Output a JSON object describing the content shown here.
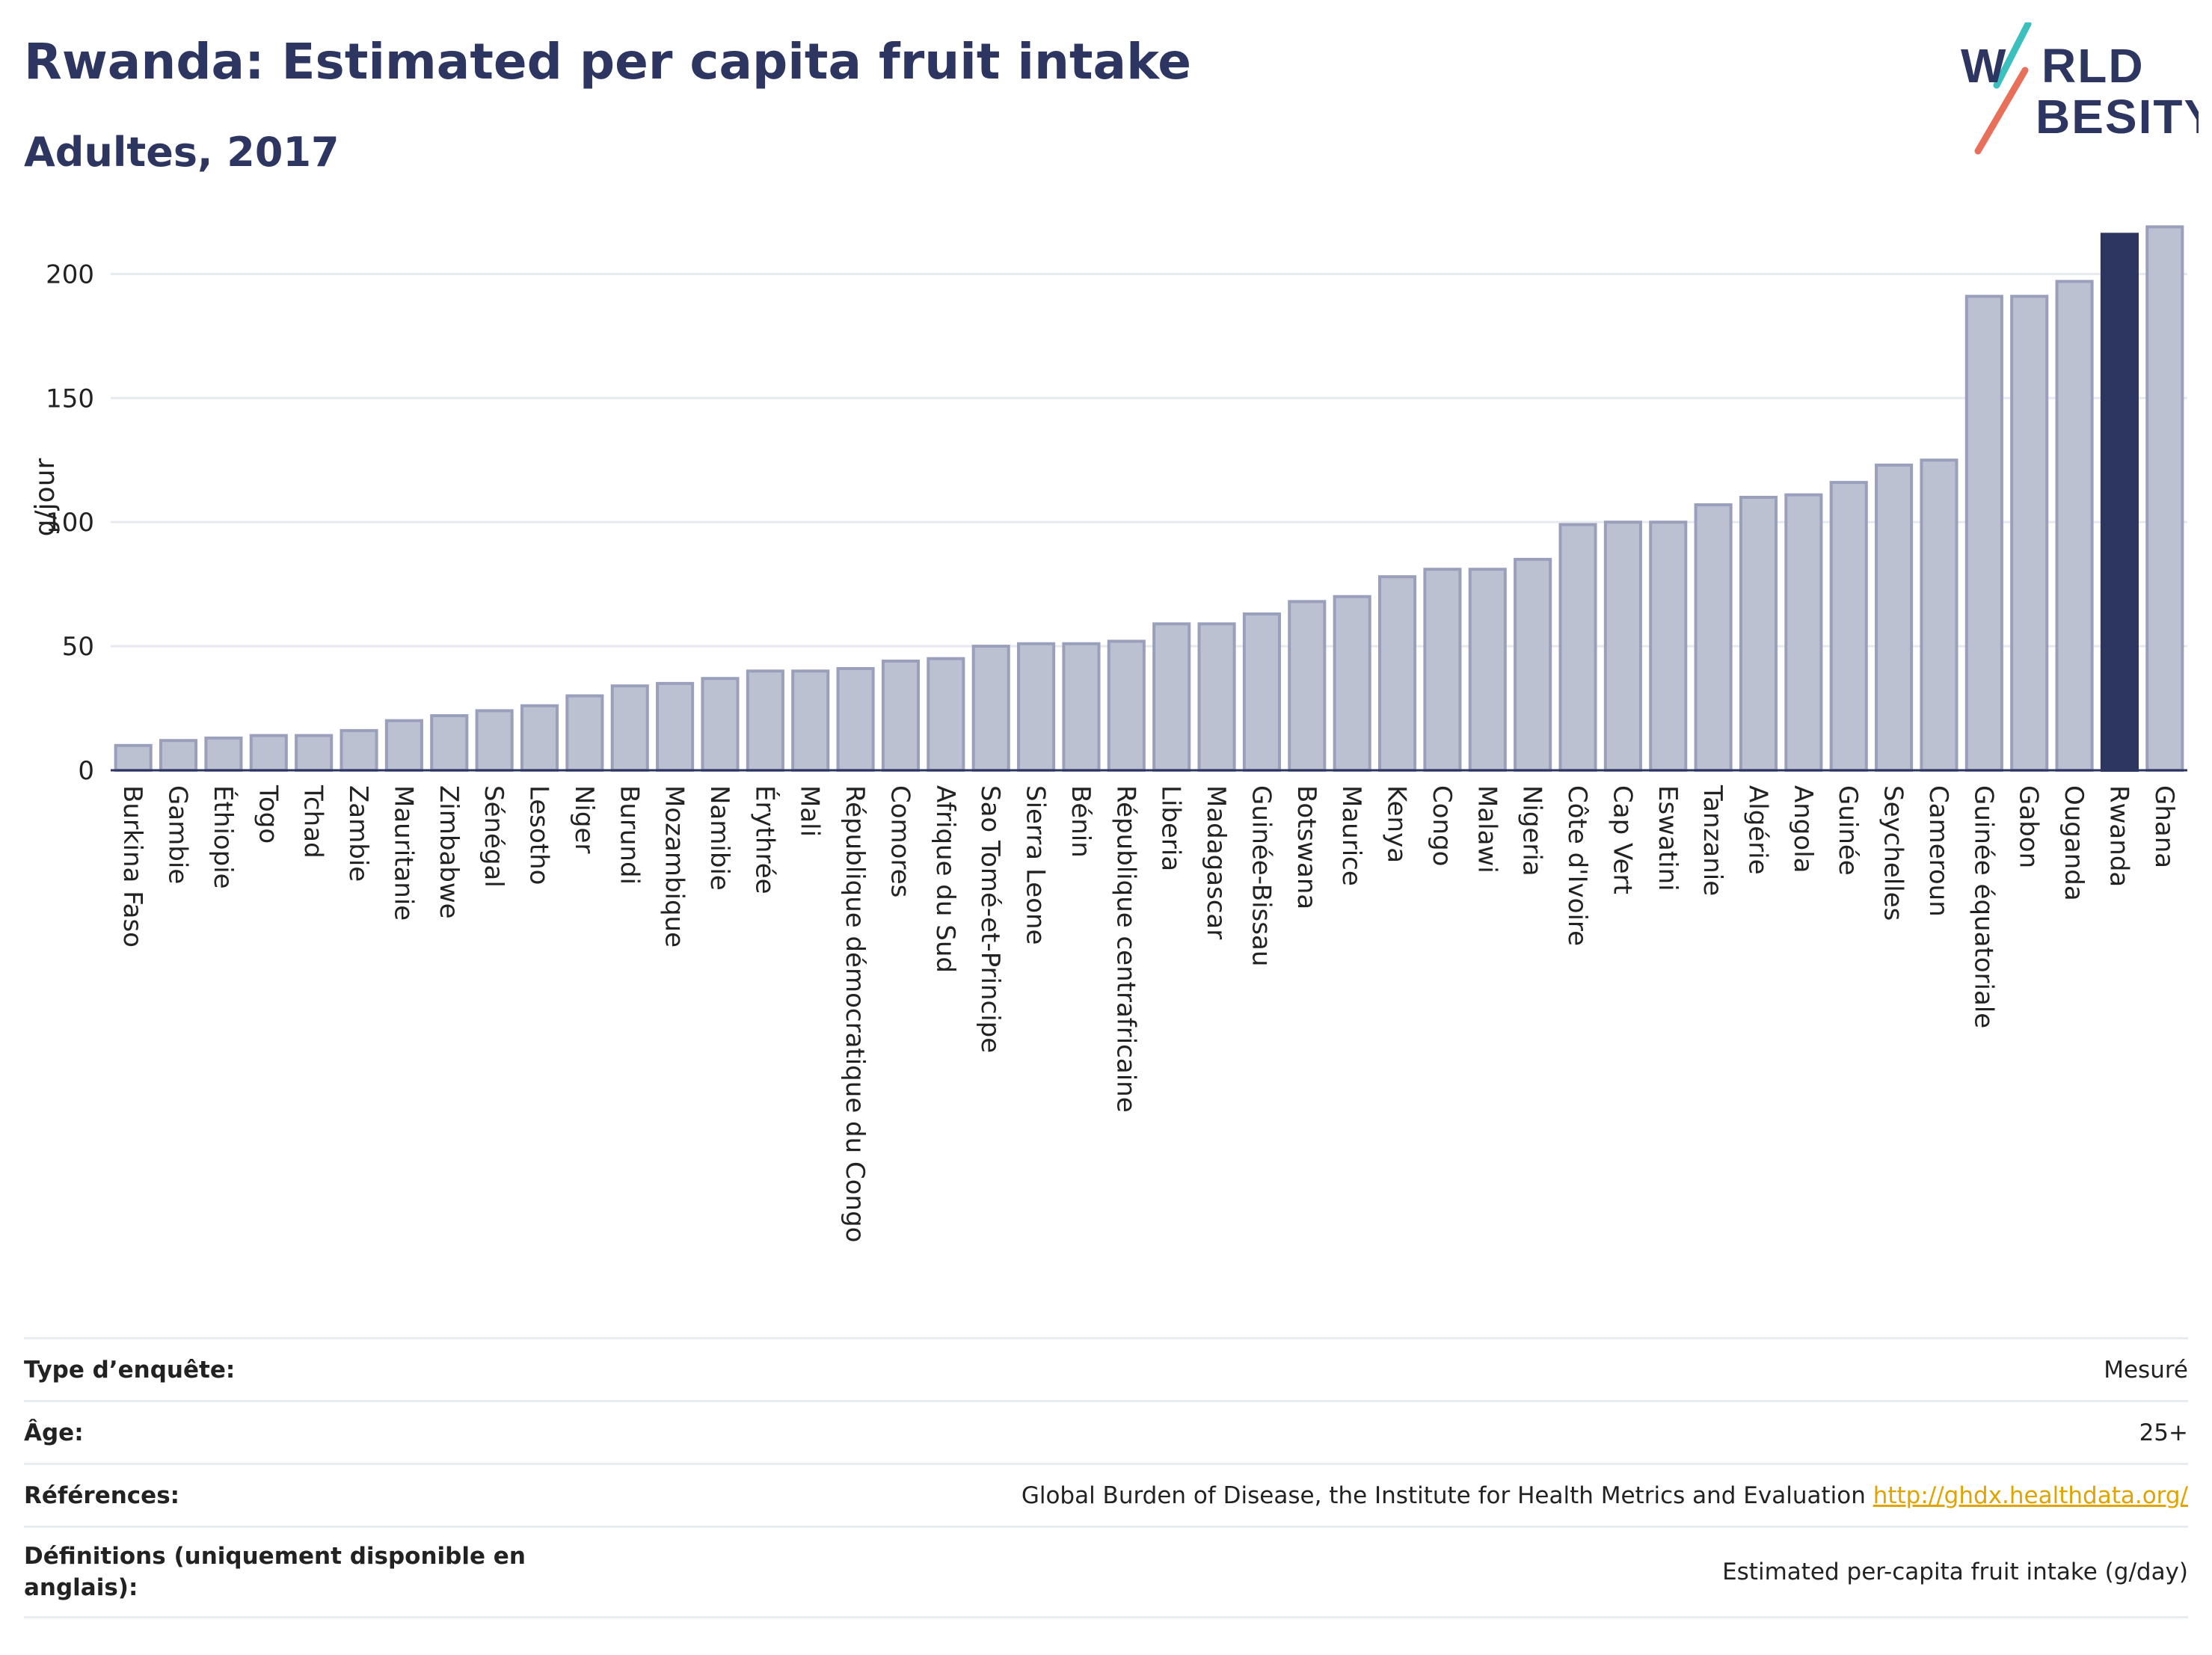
{
  "header": {
    "title": "Rwanda: Estimated per capita fruit intake",
    "subtitle": "Adultes, 2017",
    "logo_text": "WORLD OBESITY"
  },
  "colors": {
    "title": "#2d3561",
    "bar": "#bcc1d1",
    "bar_border": "#9aa0bb",
    "highlight": "#2d3561",
    "grid": "#e6e9ef",
    "link": "#e0a400",
    "logo_teal": "#3bbfbf",
    "logo_coral": "#e8705a"
  },
  "chart_data": {
    "type": "bar",
    "title": "",
    "xlabel": "",
    "ylabel": "g/jour",
    "ylim": [
      0,
      220
    ],
    "yticks": [
      0,
      50,
      100,
      150,
      200
    ],
    "grid": true,
    "highlight": "Rwanda",
    "categories": [
      "Burkina Faso",
      "Gambie",
      "Éthiopie",
      "Togo",
      "Tchad",
      "Zambie",
      "Mauritanie",
      "Zimbabwe",
      "Sénégal",
      "Lesotho",
      "Niger",
      "Burundi",
      "Mozambique",
      "Namibie",
      "Érythrée",
      "Mali",
      "République démocratique du Congo",
      "Comores",
      "Afrique du Sud",
      "Sao Tomé-et-Principe",
      "Sierra Leone",
      "Bénin",
      "République centrafricaine",
      "Liberia",
      "Madagascar",
      "Guinée-Bissau",
      "Botswana",
      "Maurice",
      "Kenya",
      "Congo",
      "Malawi",
      "Nigeria",
      "Côte d'Ivoire",
      "Cap Vert",
      "Eswatini",
      "Tanzanie",
      "Algérie",
      "Angola",
      "Guinée",
      "Seychelles",
      "Cameroun",
      "Guinée équatoriale",
      "Gabon",
      "Ouganda",
      "Rwanda",
      "Ghana"
    ],
    "values": [
      10,
      12,
      13,
      14,
      14,
      16,
      20,
      22,
      24,
      26,
      30,
      34,
      35,
      37,
      40,
      40,
      41,
      44,
      45,
      50,
      51,
      51,
      52,
      59,
      59,
      63,
      68,
      70,
      78,
      81,
      81,
      85,
      99,
      100,
      100,
      107,
      110,
      111,
      116,
      123,
      125,
      191,
      191,
      197,
      216,
      219
    ]
  },
  "info_table": [
    {
      "label": "Type d’enquête:",
      "value": "Mesuré",
      "link": ""
    },
    {
      "label": "Âge:",
      "value": "25+",
      "link": ""
    },
    {
      "label": "Références:",
      "value": "Global Burden of Disease, the Institute for Health Metrics and Evaluation ",
      "link": "http://ghdx.healthdata.org/"
    },
    {
      "label": "Définitions (uniquement disponible en anglais):",
      "value": "Estimated per-capita fruit intake (g/day)",
      "link": ""
    }
  ]
}
